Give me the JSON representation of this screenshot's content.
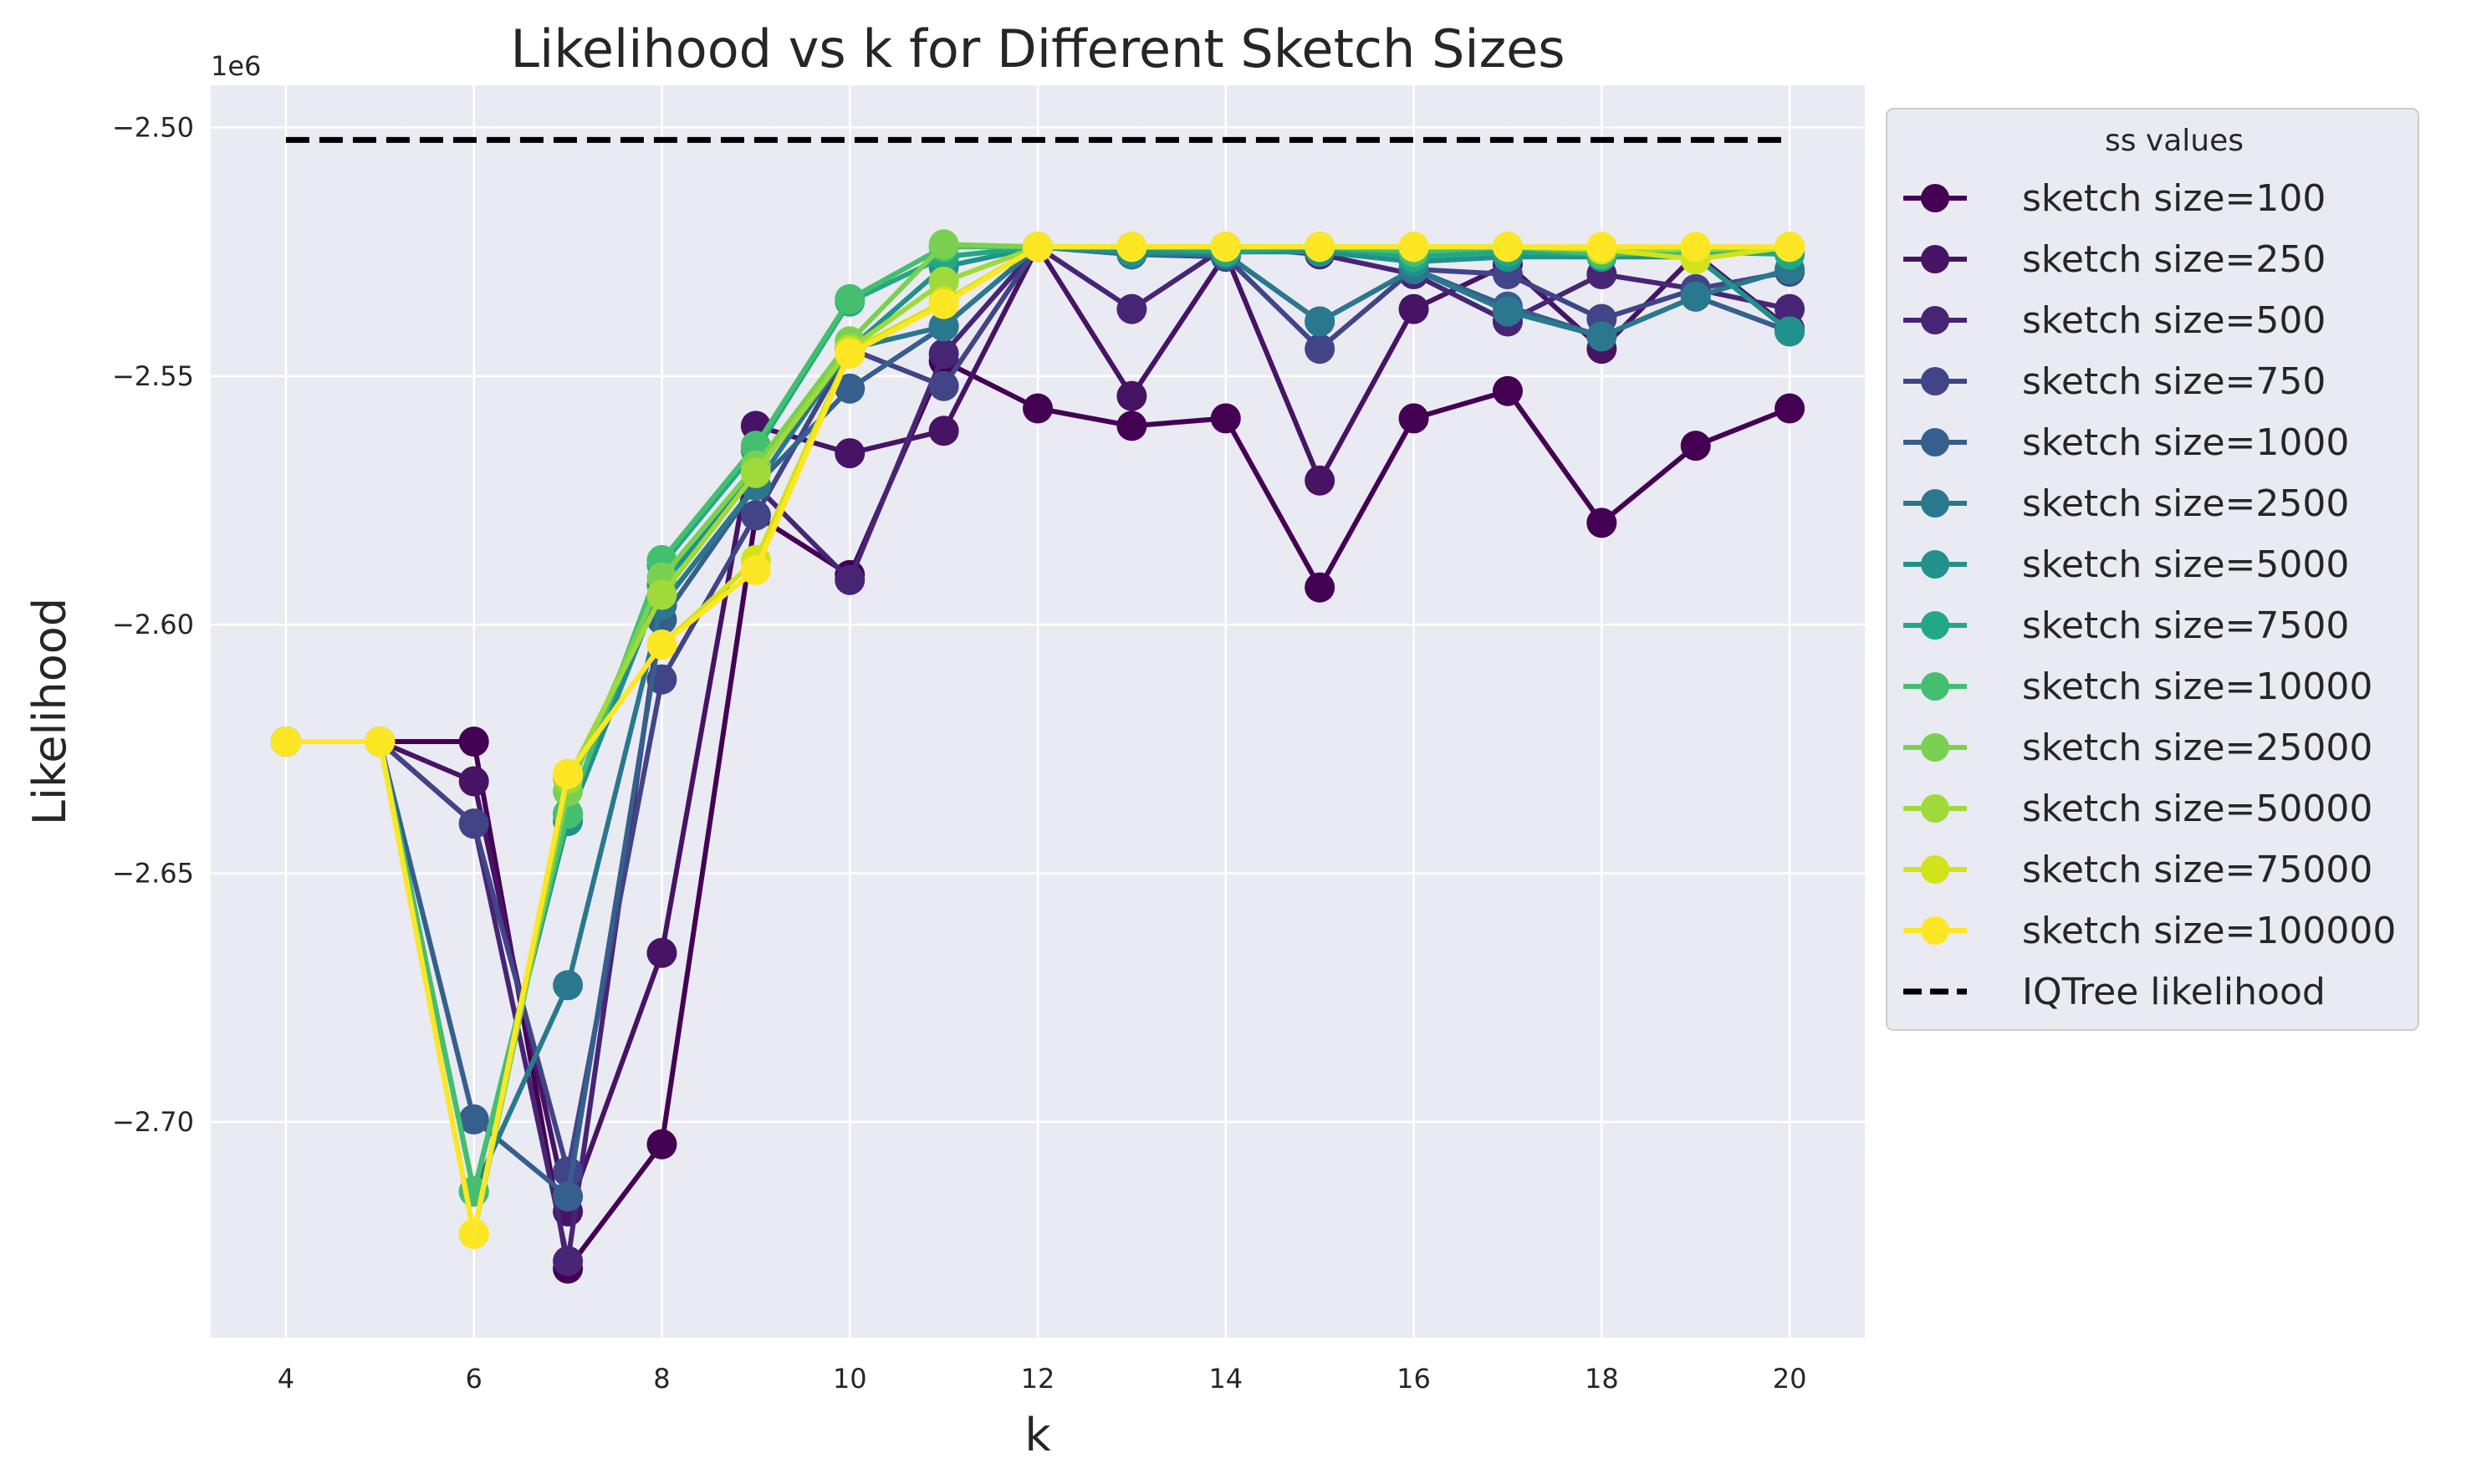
{
  "chart_data": {
    "type": "line",
    "title": "Likelihood vs k for Different Sketch Sizes",
    "xlabel": "k",
    "ylabel": "Likelihood",
    "y_offset_label": "1e6",
    "xlim": [
      3.2,
      20.8
    ],
    "ylim": [
      -2.7434,
      -2.4915
    ],
    "x_ticks": [
      4,
      6,
      8,
      10,
      12,
      14,
      16,
      18,
      20
    ],
    "y_ticks": [
      -2.5,
      -2.55,
      -2.6,
      -2.65,
      -2.7
    ],
    "y_tick_labels": [
      "−2.50",
      "−2.55",
      "−2.60",
      "−2.65",
      "−2.70"
    ],
    "grid": true,
    "legend_title": "ss values",
    "legend_position": "outside-right",
    "x": [
      4,
      5,
      6,
      7,
      8,
      9,
      10,
      11,
      12,
      13,
      14,
      15,
      16,
      17,
      18,
      19,
      20
    ],
    "series": [
      {
        "name": "sketch size=100",
        "color": "#440154",
        "values": [
          -2.6235,
          -2.6235,
          -2.6235,
          -2.7295,
          -2.7045,
          -2.578,
          -2.59,
          -2.547,
          -2.5565,
          -2.56,
          -2.5585,
          -2.5925,
          -2.5585,
          -2.553,
          -2.5795,
          -2.564,
          -2.5565
        ]
      },
      {
        "name": "sketch size=250",
        "color": "#471365",
        "values": [
          -2.6235,
          -2.6235,
          -2.6315,
          -2.718,
          -2.666,
          -2.56,
          -2.5655,
          -2.561,
          -2.524,
          -2.554,
          -2.5255,
          -2.571,
          -2.5365,
          -2.5275,
          -2.5445,
          -2.5255,
          -2.5405
        ]
      },
      {
        "name": "sketch size=500",
        "color": "#482475",
        "values": [
          -2.6235,
          -2.6235,
          -2.64,
          -2.728,
          -2.596,
          -2.572,
          -2.591,
          -2.5455,
          -2.524,
          -2.5365,
          -2.524,
          -2.5255,
          -2.5295,
          -2.539,
          -2.5295,
          -2.5325,
          -2.5365
        ]
      },
      {
        "name": "sketch size=750",
        "color": "#414487",
        "values": [
          -2.6235,
          -2.6235,
          -2.64,
          -2.71,
          -2.611,
          -2.578,
          -2.5445,
          -2.552,
          -2.524,
          -2.5255,
          -2.526,
          -2.5445,
          -2.5285,
          -2.5295,
          -2.5385,
          -2.5325,
          -2.529
        ]
      },
      {
        "name": "sketch size=1000",
        "color": "#355f8d",
        "values": [
          -2.6235,
          -2.6235,
          -2.6995,
          -2.715,
          -2.599,
          -2.572,
          -2.5525,
          -2.54,
          -2.524,
          -2.5255,
          -2.5255,
          -2.539,
          -2.5285,
          -2.536,
          -2.542,
          -2.534,
          -2.541
        ]
      },
      {
        "name": "sketch size=2500",
        "color": "#2a788e",
        "values": [
          -2.6235,
          -2.6235,
          -2.714,
          -2.6725,
          -2.596,
          -2.572,
          -2.5445,
          -2.54,
          -2.524,
          -2.5255,
          -2.5255,
          -2.539,
          -2.5285,
          -2.537,
          -2.542,
          -2.534,
          -2.5285
        ]
      },
      {
        "name": "sketch size=5000",
        "color": "#21918c",
        "values": [
          -2.6235,
          -2.6235,
          -2.714,
          -2.6395,
          -2.592,
          -2.569,
          -2.5445,
          -2.528,
          -2.524,
          -2.525,
          -2.525,
          -2.525,
          -2.527,
          -2.526,
          -2.526,
          -2.526,
          -2.541
        ]
      },
      {
        "name": "sketch size=7500",
        "color": "#22a884",
        "values": [
          -2.6235,
          -2.6235,
          -2.714,
          -2.638,
          -2.588,
          -2.565,
          -2.535,
          -2.526,
          -2.524,
          -2.524,
          -2.525,
          -2.524,
          -2.526,
          -2.525,
          -2.5255,
          -2.525,
          -2.5255
        ]
      },
      {
        "name": "sketch size=10000",
        "color": "#44bf70",
        "values": [
          -2.6235,
          -2.6235,
          -2.714,
          -2.638,
          -2.587,
          -2.564,
          -2.5345,
          -2.524,
          -2.524,
          -2.524,
          -2.524,
          -2.524,
          -2.525,
          -2.524,
          -2.5255,
          -2.525,
          -2.524
        ]
      },
      {
        "name": "sketch size=25000",
        "color": "#7ad151",
        "values": [
          -2.6235,
          -2.6235,
          -2.7225,
          -2.6335,
          -2.5905,
          -2.568,
          -2.543,
          -2.5235,
          -2.524,
          -2.524,
          -2.524,
          -2.524,
          -2.524,
          -2.524,
          -2.5245,
          -2.5245,
          -2.524
        ]
      },
      {
        "name": "sketch size=50000",
        "color": "#9fda3a",
        "values": [
          -2.6235,
          -2.6235,
          -2.7225,
          -2.631,
          -2.594,
          -2.5695,
          -2.5445,
          -2.531,
          -2.524,
          -2.524,
          -2.524,
          -2.524,
          -2.524,
          -2.524,
          -2.5245,
          -2.5245,
          -2.524
        ]
      },
      {
        "name": "sketch size=75000",
        "color": "#d2e21b",
        "values": [
          -2.6235,
          -2.6235,
          -2.7225,
          -2.63,
          -2.604,
          -2.587,
          -2.545,
          -2.535,
          -2.524,
          -2.524,
          -2.524,
          -2.524,
          -2.524,
          -2.524,
          -2.5245,
          -2.5265,
          -2.524
        ]
      },
      {
        "name": "sketch size=100000",
        "color": "#fde725",
        "values": [
          -2.6235,
          -2.6235,
          -2.7225,
          -2.63,
          -2.604,
          -2.589,
          -2.5455,
          -2.5355,
          -2.524,
          -2.524,
          -2.524,
          -2.524,
          -2.524,
          -2.524,
          -2.524,
          -2.524,
          -2.524
        ]
      }
    ],
    "reference_line": {
      "name": "IQTree likelihood",
      "color": "#000000",
      "style": "dashed",
      "y": -2.5025,
      "x_range": [
        4,
        20
      ]
    }
  }
}
